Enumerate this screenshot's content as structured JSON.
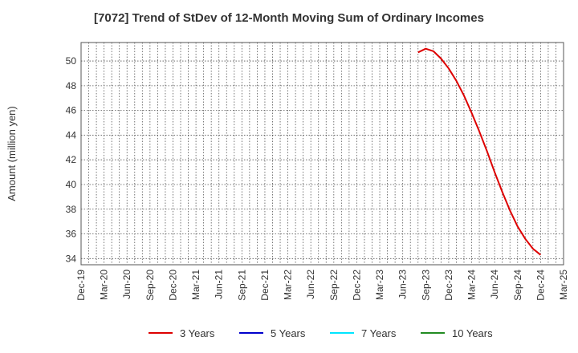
{
  "chart_data": {
    "type": "line",
    "title": "[7072]  Trend of StDev of 12-Month Moving Sum of Ordinary Incomes",
    "ylabel": "Amount (million yen)",
    "xlabel": "",
    "ylim": [
      33.5,
      51.5
    ],
    "yticks": [
      34,
      36,
      38,
      40,
      42,
      44,
      46,
      48,
      50
    ],
    "x_start": "2019-12",
    "x_end": "2025-03",
    "xticks": [
      "Dec-19",
      "Mar-20",
      "Jun-20",
      "Sep-20",
      "Dec-20",
      "Mar-21",
      "Jun-21",
      "Sep-21",
      "Dec-21",
      "Mar-22",
      "Jun-22",
      "Sep-22",
      "Dec-22",
      "Mar-23",
      "Jun-23",
      "Sep-23",
      "Dec-23",
      "Mar-24",
      "Jun-24",
      "Sep-24",
      "Dec-24",
      "Mar-25"
    ],
    "grid": true,
    "legend_position": "bottom",
    "series": [
      {
        "name": "3 Years",
        "color": "#dd0000",
        "points": [
          [
            "2023-08",
            50.7
          ],
          [
            "2023-09",
            51.0
          ],
          [
            "2023-10",
            50.8
          ],
          [
            "2023-11",
            50.2
          ],
          [
            "2023-12",
            49.4
          ],
          [
            "2024-01",
            48.4
          ],
          [
            "2024-02",
            47.2
          ],
          [
            "2024-03",
            45.8
          ],
          [
            "2024-04",
            44.3
          ],
          [
            "2024-05",
            42.7
          ],
          [
            "2024-06",
            41.0
          ],
          [
            "2024-07",
            39.4
          ],
          [
            "2024-08",
            37.9
          ],
          [
            "2024-09",
            36.6
          ],
          [
            "2024-10",
            35.6
          ],
          [
            "2024-11",
            34.8
          ],
          [
            "2024-12",
            34.3
          ]
        ]
      },
      {
        "name": "5 Years",
        "color": "#0000cc",
        "points": []
      },
      {
        "name": "7 Years",
        "color": "#00e5ff",
        "points": []
      },
      {
        "name": "10 Years",
        "color": "#228b22",
        "points": []
      }
    ]
  }
}
